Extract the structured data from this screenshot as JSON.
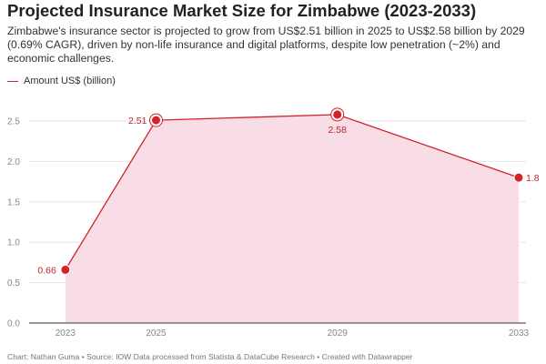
{
  "title": "Projected Insurance Market Size for Zimbabwe (2023-2033)",
  "subtitle": "Zimbabwe's insurance sector is projected to grow from US$2.51 billion in 2025 to US$2.58 billion by 2029 (0.69% CAGR), driven by non-life insurance and digital platforms, despite low penetration (~2%) and economic challenges.",
  "legend": {
    "label": "Amount US$ (billion)"
  },
  "footer": {
    "chart_by": "Chart: Nathan Guma",
    "source": "Source: IOW Data processed from Statista & DataCube Research",
    "created": "Created with Datawrapper"
  },
  "colors": {
    "line": "#d1232a",
    "area": "#f8dde6",
    "grid": "#e6e6e6",
    "label": "#c0272d"
  },
  "chart_data": {
    "type": "area",
    "title": "Projected Insurance Market Size for Zimbabwe (2023-2033)",
    "xlabel": "",
    "ylabel": "",
    "x": [
      2023,
      2025,
      2029,
      2033
    ],
    "xlim": [
      2022.2,
      2033
    ],
    "series": [
      {
        "name": "Amount US$ (billion)",
        "values": [
          0.66,
          2.51,
          2.58,
          1.8
        ],
        "labels": [
          "0.66",
          "2.51",
          "2.58",
          "1.8"
        ]
      }
    ],
    "ylim": [
      0,
      2.5
    ],
    "yticks": [
      0.0,
      0.5,
      1.0,
      1.5,
      2.0,
      2.5
    ],
    "ytick_labels": [
      "0.0",
      "0.5",
      "1.0",
      "1.5",
      "2.0",
      "2.5"
    ],
    "xtick_labels": [
      "2023",
      "2025",
      "2029",
      "2033"
    ],
    "grid": true,
    "legend_position": "top-left"
  }
}
